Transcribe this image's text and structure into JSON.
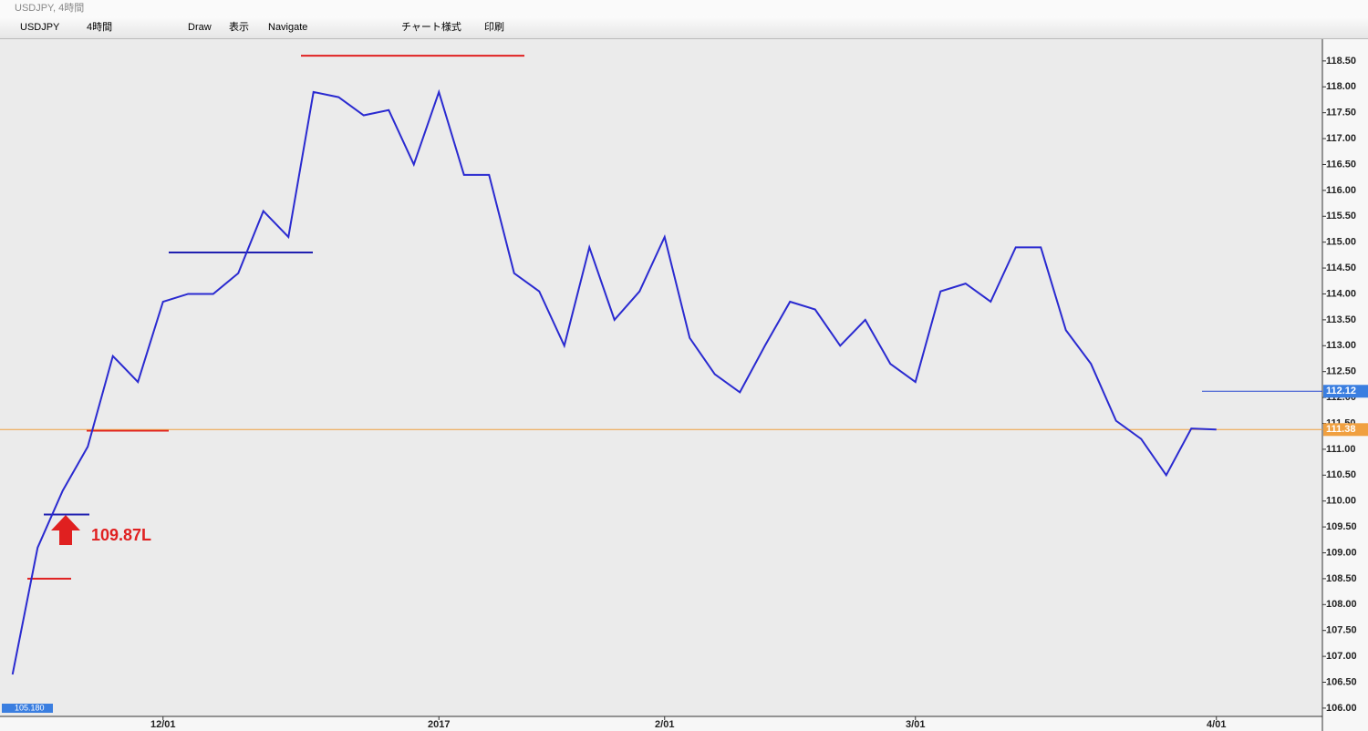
{
  "window": {
    "title": "USDJPY, 4時間",
    "toolbar": [
      "USDJPY",
      "4時間",
      "Draw",
      "表示",
      "Navigate",
      "チャート様式",
      "印刷"
    ]
  },
  "chart_data": {
    "type": "line",
    "categories": [
      null,
      null,
      null,
      null,
      null,
      null,
      "12/01",
      null,
      null,
      null,
      null,
      null,
      null,
      null,
      null,
      null,
      null,
      "2017",
      null,
      null,
      null,
      null,
      null,
      null,
      null,
      null,
      "2/01",
      null,
      null,
      null,
      null,
      null,
      null,
      null,
      null,
      null,
      "3/01",
      null,
      null,
      null,
      null,
      null,
      null,
      null,
      null,
      null,
      null,
      null,
      "4/01",
      null,
      null,
      null,
      null
    ],
    "series": [
      {
        "color": "#2a2ad0",
        "values": [
          106.65,
          109.1,
          110.2,
          111.05,
          112.8,
          112.3,
          113.85,
          114.0,
          114.0,
          114.4,
          115.6,
          115.1,
          117.9,
          117.8,
          117.45,
          117.55,
          116.5,
          117.9,
          116.3,
          116.3,
          114.4,
          114.05,
          113.0,
          114.9,
          113.5,
          114.05,
          115.1,
          113.15,
          112.45,
          112.1,
          113.0,
          113.85,
          113.7,
          113.0,
          113.5,
          112.65,
          112.3,
          114.05,
          114.2,
          113.85,
          114.9,
          114.9,
          113.3,
          112.65,
          111.55,
          111.2,
          110.5,
          111.4,
          111.38,
          null,
          null,
          null,
          null
        ]
      }
    ],
    "ylim": [
      105.84,
      118.92
    ],
    "yticks": [
      {
        "value": 106,
        "label": "106.00"
      },
      {
        "value": 106.5,
        "label": "106.50"
      },
      {
        "value": 107,
        "label": "107.00"
      },
      {
        "value": 107.5,
        "label": "107.50"
      },
      {
        "value": 108,
        "label": "108.00"
      },
      {
        "value": 108.5,
        "label": "108.50"
      },
      {
        "value": 109,
        "label": "109.00"
      },
      {
        "value": 109.5,
        "label": "109.50"
      },
      {
        "value": 110,
        "label": "110.00"
      },
      {
        "value": 110.5,
        "label": "110.50"
      },
      {
        "value": 111,
        "label": "111.00"
      },
      {
        "value": 111.5,
        "label": "111.50"
      },
      {
        "value": 112,
        "label": "112.00"
      },
      {
        "value": 112.5,
        "label": "112.50"
      },
      {
        "value": 113,
        "label": "113.00"
      },
      {
        "value": 113.5,
        "label": "113.50"
      },
      {
        "value": 114,
        "label": "114.00"
      },
      {
        "value": 114.5,
        "label": "114.50"
      },
      {
        "value": 115,
        "label": "115.00"
      },
      {
        "value": 115.5,
        "label": "115.50"
      },
      {
        "value": 116,
        "label": "116.00"
      },
      {
        "value": 116.5,
        "label": "116.50"
      },
      {
        "value": 117,
        "label": "117.00"
      },
      {
        "value": 117.5,
        "label": "117.50"
      },
      {
        "value": 118,
        "label": "118.00"
      },
      {
        "value": 118.5,
        "label": "118.50"
      }
    ],
    "levels": [
      {
        "value": 118.6,
        "color": "#e02020"
      },
      {
        "value": 114.8,
        "color": "#2020b0"
      },
      {
        "value": 111.36,
        "color": "#e02020"
      },
      {
        "value": 109.74,
        "color": "#2020b0"
      },
      {
        "value": 108.5,
        "color": "#e02020"
      }
    ],
    "current_price": {
      "value": 111.38,
      "color": "#f0a040"
    },
    "price_tag": {
      "value": 112.12,
      "color": "#3a7ee0"
    },
    "low_marker": {
      "value": 105.18,
      "label": "105.180"
    },
    "annotation": "109.87L"
  }
}
